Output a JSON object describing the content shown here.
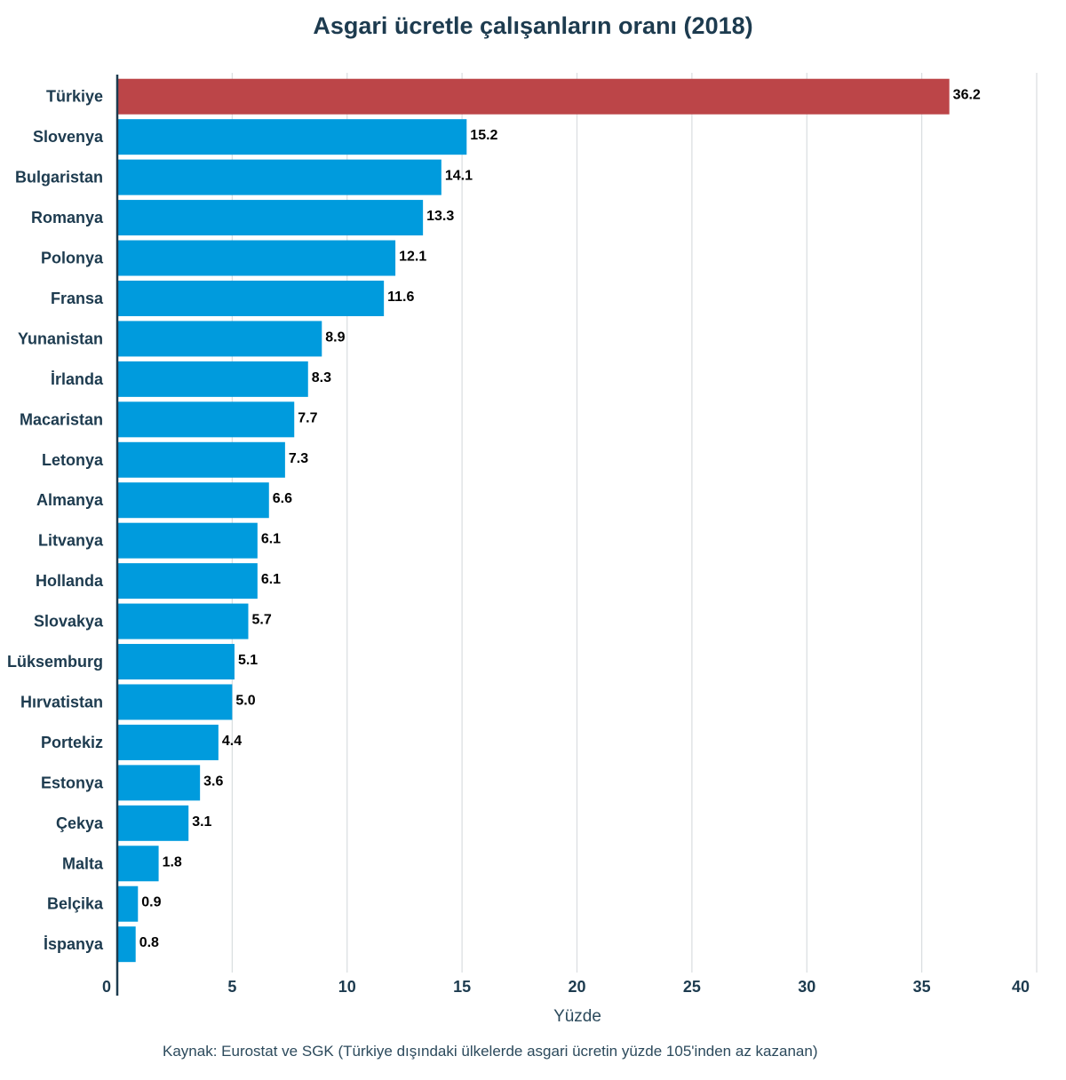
{
  "chart_data": {
    "type": "bar",
    "orientation": "horizontal",
    "title": "Asgari ücretle çalışanların oranı (2018)",
    "xlabel": "Yüzde",
    "ylabel": "",
    "xlim": [
      0,
      40
    ],
    "xticks": [
      "0",
      "5",
      "10",
      "15",
      "20",
      "25",
      "30",
      "35",
      "40"
    ],
    "grid": true,
    "categories": [
      "Türkiye",
      "Slovenya",
      "Bulgaristan",
      "Romanya",
      "Polonya",
      "Fransa",
      "Yunanistan",
      "İrlanda",
      "Macaristan",
      "Letonya",
      "Almanya",
      "Litvanya",
      "Hollanda",
      "Slovakya",
      "Lüksemburg",
      "Hırvatistan",
      "Portekiz",
      "Estonya",
      "Çekya",
      "Malta",
      "Belçika",
      "İspanya"
    ],
    "values": [
      36.2,
      15.2,
      14.1,
      13.3,
      12.1,
      11.6,
      8.9,
      8.3,
      7.7,
      7.3,
      6.6,
      6.1,
      6.1,
      5.7,
      5.1,
      5.0,
      4.4,
      3.6,
      3.1,
      1.8,
      0.9,
      0.8
    ],
    "value_labels": [
      "36.2",
      "15.2",
      "14.1",
      "13.3",
      "12.1",
      "11.6",
      "8.9",
      "8.3",
      "7.7",
      "7.3",
      "6.6",
      "6.1",
      "6.1",
      "5.7",
      "5.1",
      "5.0",
      "4.4",
      "3.6",
      "3.1",
      "1.8",
      "0.9",
      "0.8"
    ],
    "highlight_category": "Türkiye",
    "colors": {
      "bar": "#009bdd",
      "highlight": "#bc4548",
      "axis": "#1d3b4f",
      "grid": "#d9dde0",
      "category_label": "#1d3b4f",
      "value_label": "#000000"
    }
  },
  "source": "Kaynak: Eurostat ve SGK (Türkiye dışındaki ülkelerde asgari ücretin yüzde 105'inden az kazanan)"
}
